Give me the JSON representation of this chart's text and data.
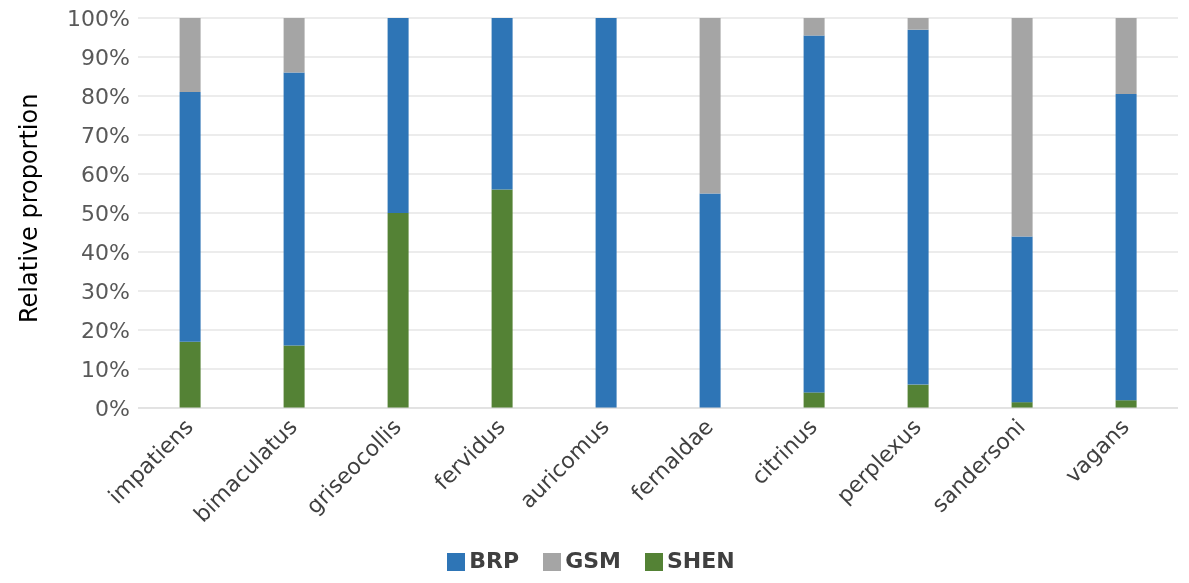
{
  "chart_data": {
    "type": "bar",
    "stacked": true,
    "ylabel": "Relative proportion",
    "categories": [
      "impatiens",
      "bimaculatus",
      "griseocollis",
      "fervidus",
      "auricomus",
      "fernaldae",
      "citrinus",
      "perplexus",
      "sandersoni",
      "vagans"
    ],
    "series": [
      {
        "name": "SHEN",
        "color": "#548235",
        "values": [
          17,
          16,
          50,
          56,
          0,
          0,
          4,
          6,
          1.5,
          2
        ]
      },
      {
        "name": "BRP",
        "color": "#2e75b6",
        "values": [
          64,
          70,
          50,
          44,
          100,
          55,
          91.5,
          91,
          42.5,
          78.5
        ]
      },
      {
        "name": "GSM",
        "color": "#a5a5a5",
        "values": [
          19,
          14,
          0,
          0,
          0,
          45,
          4.5,
          3,
          56,
          19.5
        ]
      }
    ],
    "ylim": [
      0,
      100
    ],
    "yticks": [
      {
        "value": 0,
        "label": "0%"
      },
      {
        "value": 10,
        "label": "10%"
      },
      {
        "value": 20,
        "label": "20%"
      },
      {
        "value": 30,
        "label": "30%"
      },
      {
        "value": 40,
        "label": "40%"
      },
      {
        "value": 50,
        "label": "50%"
      },
      {
        "value": 60,
        "label": "60%"
      },
      {
        "value": 70,
        "label": "70%"
      },
      {
        "value": 80,
        "label": "80%"
      },
      {
        "value": 90,
        "label": "90%"
      },
      {
        "value": 100,
        "label": "100%"
      }
    ],
    "grid": "y",
    "legend": "bottom"
  }
}
